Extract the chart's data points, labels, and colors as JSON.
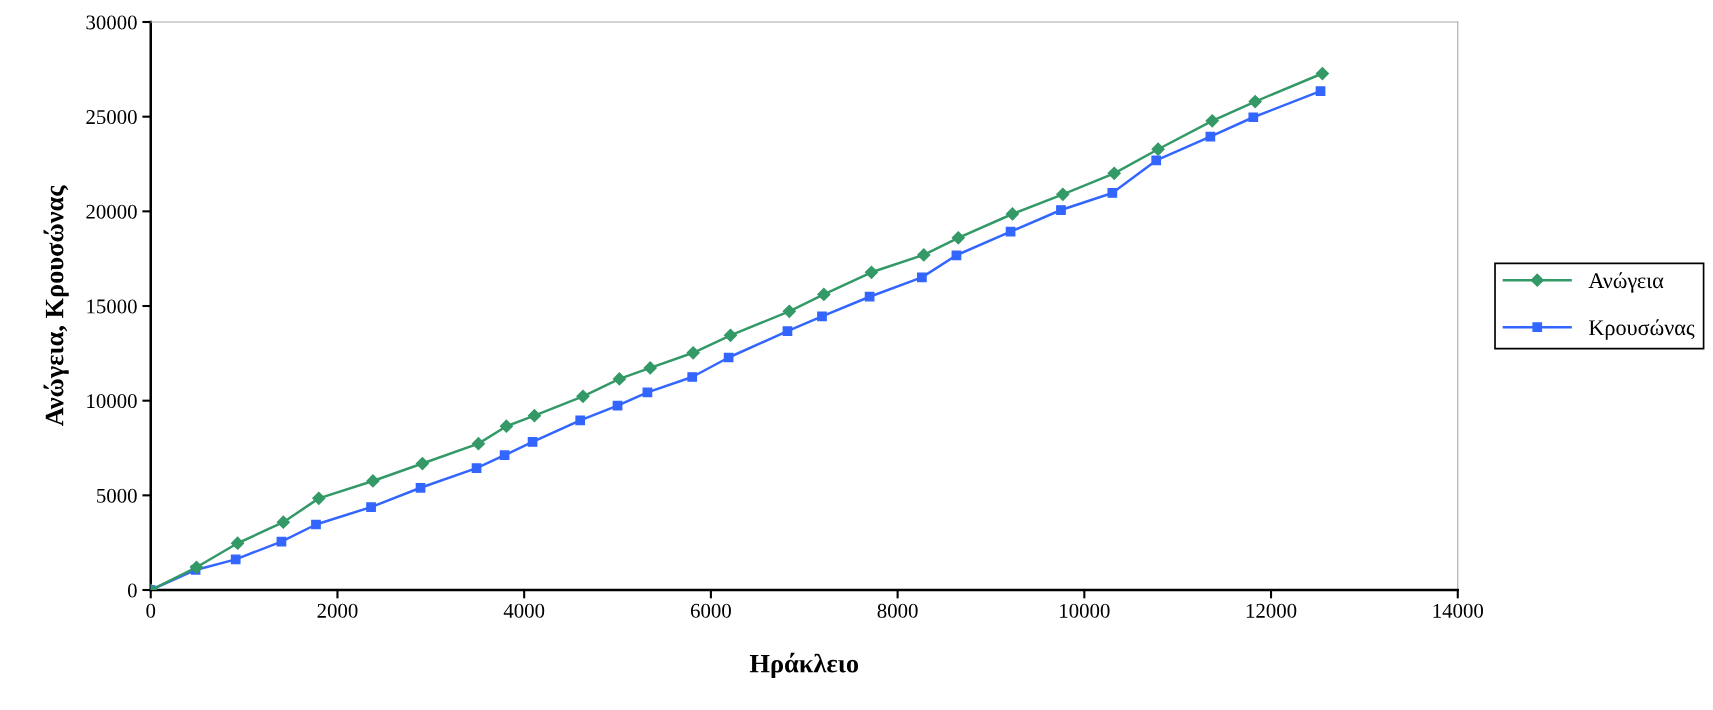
{
  "chart_data": {
    "type": "line",
    "xlabel": "Ηράκλειο",
    "ylabel": "Ανώγεια, Κρουσώνας",
    "xlim": [
      0,
      14000
    ],
    "xticks": [
      0,
      2000,
      4000,
      6000,
      8000,
      10000,
      12000,
      14000
    ],
    "ylim": [
      0,
      30000
    ],
    "yticks": [
      0,
      5000,
      10000,
      15000,
      20000,
      25000,
      30000
    ],
    "grid": false,
    "legend": "right",
    "line_style": "solid",
    "series": [
      {
        "name": "Ανώγεια",
        "color": "#339966",
        "marker": "diamond",
        "x": [
          0,
          490,
          930,
          1420,
          1800,
          2380,
          2910,
          3510,
          3810,
          4110,
          4630,
          5020,
          5350,
          5810,
          6210,
          6840,
          7210,
          7720,
          8280,
          8650,
          9230,
          9770,
          10320,
          10790,
          11370,
          11830,
          12550
        ],
        "values": [
          0,
          1200,
          2470,
          3580,
          4840,
          5760,
          6680,
          7730,
          8650,
          9210,
          10230,
          11150,
          11730,
          12530,
          13450,
          14720,
          15610,
          16780,
          17700,
          18600,
          19860,
          20900,
          22010,
          23280,
          24780,
          25800,
          27280
        ]
      },
      {
        "name": "Κρουσώνας",
        "color": "#3366ff",
        "marker": "square",
        "x": [
          0,
          480,
          910,
          1400,
          1770,
          2360,
          2890,
          3490,
          3790,
          4090,
          4600,
          5000,
          5320,
          5800,
          6190,
          6820,
          7190,
          7700,
          8260,
          8630,
          9210,
          9750,
          10300,
          10770,
          11350,
          11810,
          12530
        ],
        "values": [
          0,
          1060,
          1620,
          2560,
          3460,
          4380,
          5400,
          6440,
          7120,
          7820,
          8960,
          9740,
          10440,
          11250,
          12280,
          13670,
          14450,
          15490,
          16510,
          17680,
          18930,
          20070,
          20970,
          22690,
          23950,
          24970,
          26350
        ]
      }
    ]
  }
}
